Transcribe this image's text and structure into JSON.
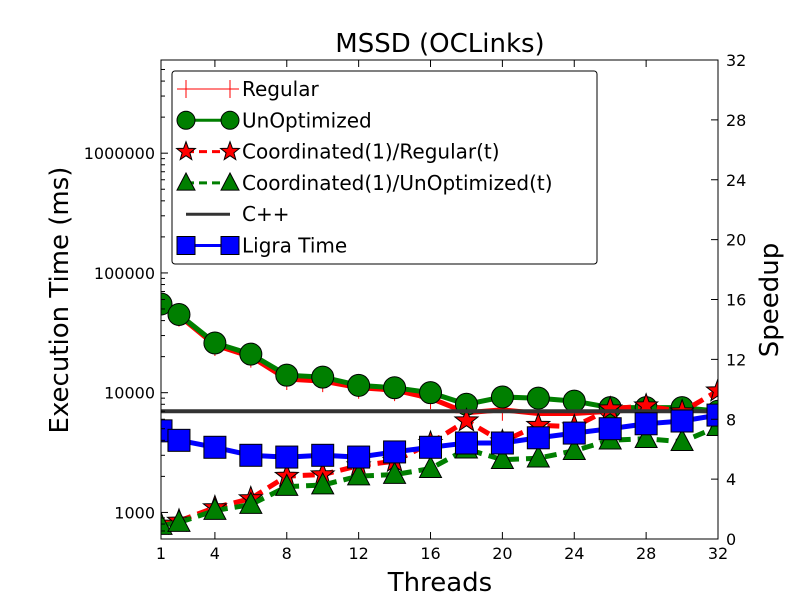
{
  "chart_data": {
    "type": "line",
    "title": "MSSD (OCLinks)",
    "xlabel": "Threads",
    "ylabel_left": "Execution Time (ms)",
    "ylabel_right": "Speedup",
    "x_ticks": [
      1,
      4,
      8,
      12,
      16,
      20,
      24,
      28,
      32
    ],
    "x_tick_labels": [
      "1",
      "4",
      "8",
      "12",
      "16",
      "20",
      "24",
      "28",
      "32"
    ],
    "xlim": [
      1,
      32
    ],
    "y_left_scale": "log",
    "y_left_lim": [
      600,
      6000000
    ],
    "y_left_ticks": [
      1000,
      10000,
      100000,
      1000000
    ],
    "y_left_tick_labels": [
      "1000",
      "10000",
      "100000",
      "1000000"
    ],
    "y_right_lim": [
      0,
      32
    ],
    "y_right_ticks": [
      0,
      4,
      8,
      12,
      16,
      20,
      24,
      28,
      32
    ],
    "y_right_tick_labels": [
      "0",
      "4",
      "8",
      "12",
      "16",
      "20",
      "24",
      "28",
      "32"
    ],
    "legend_position": "top-left",
    "series": [
      {
        "name": "Regular",
        "axis": "left",
        "color": "#ff0000",
        "marker": "plus",
        "linestyle": "solid",
        "x": [
          1,
          2,
          4,
          6,
          8,
          10,
          12,
          14,
          16,
          18,
          20,
          22,
          24,
          26,
          28,
          30,
          32
        ],
        "y": [
          55000,
          44000,
          25000,
          20000,
          13000,
          12500,
          11000,
          10500,
          9000,
          6800,
          7200,
          6700,
          6700,
          7000,
          7300,
          7200,
          7000
        ]
      },
      {
        "name": "UnOptimized",
        "axis": "left",
        "color": "#007f00",
        "marker": "circle",
        "linestyle": "solid",
        "x": [
          1,
          2,
          4,
          6,
          8,
          10,
          12,
          14,
          16,
          18,
          20,
          22,
          24,
          26,
          28,
          30,
          32
        ],
        "y": [
          55000,
          45000,
          26000,
          21000,
          14000,
          13500,
          11500,
          11000,
          10000,
          8000,
          9200,
          9000,
          8500,
          7500,
          7500,
          7500,
          7000
        ]
      },
      {
        "name": "Coordinated(1)/Regular(t)",
        "axis": "right",
        "color": "#ff0000",
        "marker": "star",
        "linestyle": "dashed",
        "x": [
          1,
          2,
          4,
          6,
          8,
          10,
          12,
          14,
          16,
          18,
          20,
          22,
          24,
          26,
          28,
          30,
          32
        ],
        "y": [
          1.0,
          1.2,
          2.1,
          2.7,
          4.2,
          4.3,
          4.9,
          5.2,
          6.4,
          7.9,
          6.5,
          7.6,
          7.5,
          8.7,
          8.9,
          8.5,
          9.9
        ]
      },
      {
        "name": "Coordinated(1)/UnOptimized(t)",
        "axis": "right",
        "color": "#007f00",
        "marker": "triangle",
        "linestyle": "dashed",
        "x": [
          1,
          2,
          4,
          6,
          8,
          10,
          12,
          14,
          16,
          18,
          20,
          22,
          24,
          26,
          28,
          30,
          32
        ],
        "y": [
          0.9,
          1.1,
          1.9,
          2.3,
          3.5,
          3.6,
          4.2,
          4.3,
          4.7,
          6.0,
          5.3,
          5.4,
          5.9,
          6.6,
          6.7,
          6.5,
          7.5
        ]
      },
      {
        "name": "C++",
        "axis": "left",
        "color": "#333333",
        "marker": "none",
        "linestyle": "solid",
        "x": [
          1,
          32
        ],
        "y": [
          7000,
          7000
        ]
      },
      {
        "name": "Ligra Time",
        "axis": "left",
        "color": "#0000ff",
        "marker": "square",
        "linestyle": "solid",
        "x": [
          1,
          2,
          4,
          6,
          8,
          10,
          12,
          14,
          16,
          18,
          20,
          22,
          24,
          26,
          28,
          30,
          32
        ],
        "y": [
          4800,
          4000,
          3500,
          3000,
          2900,
          3000,
          2900,
          3200,
          3500,
          3800,
          3800,
          4200,
          4600,
          5000,
          5500,
          5800,
          6500
        ]
      }
    ]
  }
}
